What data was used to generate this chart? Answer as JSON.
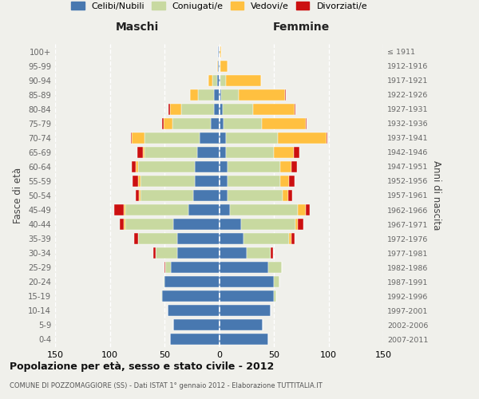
{
  "age_groups": [
    "0-4",
    "5-9",
    "10-14",
    "15-19",
    "20-24",
    "25-29",
    "30-34",
    "35-39",
    "40-44",
    "45-49",
    "50-54",
    "55-59",
    "60-64",
    "65-69",
    "70-74",
    "75-79",
    "80-84",
    "85-89",
    "90-94",
    "95-99",
    "100+"
  ],
  "birth_years": [
    "2007-2011",
    "2002-2006",
    "1997-2001",
    "1992-1996",
    "1987-1991",
    "1982-1986",
    "1977-1981",
    "1972-1976",
    "1967-1971",
    "1962-1966",
    "1957-1961",
    "1952-1956",
    "1947-1951",
    "1942-1946",
    "1937-1941",
    "1932-1936",
    "1927-1931",
    "1922-1926",
    "1917-1921",
    "1912-1916",
    "≤ 1911"
  ],
  "maschi": {
    "celibi": [
      45,
      42,
      47,
      52,
      50,
      44,
      38,
      38,
      42,
      28,
      24,
      22,
      22,
      20,
      18,
      8,
      5,
      5,
      2,
      1,
      1
    ],
    "coniugati": [
      0,
      0,
      0,
      1,
      1,
      5,
      20,
      36,
      44,
      58,
      48,
      50,
      52,
      48,
      50,
      35,
      30,
      14,
      4,
      0,
      0
    ],
    "vedovi": [
      0,
      0,
      0,
      0,
      0,
      0,
      0,
      0,
      1,
      1,
      1,
      2,
      2,
      2,
      12,
      8,
      10,
      8,
      4,
      1,
      0
    ],
    "divorziati": [
      0,
      0,
      0,
      0,
      0,
      1,
      2,
      4,
      4,
      9,
      3,
      5,
      4,
      5,
      1,
      1,
      1,
      0,
      0,
      0,
      0
    ]
  },
  "femmine": {
    "nubili": [
      45,
      40,
      47,
      50,
      50,
      45,
      25,
      22,
      20,
      10,
      8,
      8,
      8,
      6,
      6,
      4,
      3,
      2,
      1,
      0,
      0
    ],
    "coniugate": [
      0,
      0,
      0,
      2,
      5,
      12,
      22,
      42,
      50,
      62,
      50,
      48,
      48,
      44,
      48,
      35,
      28,
      16,
      5,
      1,
      0
    ],
    "vedove": [
      0,
      0,
      0,
      0,
      0,
      0,
      0,
      2,
      2,
      7,
      5,
      8,
      10,
      18,
      44,
      40,
      38,
      42,
      32,
      7,
      2
    ],
    "divorziate": [
      0,
      0,
      0,
      0,
      0,
      0,
      2,
      3,
      5,
      4,
      4,
      5,
      5,
      5,
      1,
      1,
      1,
      1,
      0,
      0,
      0
    ]
  },
  "colors": {
    "celibi": "#4878b0",
    "coniugati": "#c8d9a0",
    "vedovi": "#ffc040",
    "divorziati": "#cc1010"
  },
  "xlim": 150,
  "title": "Popolazione per età, sesso e stato civile - 2012",
  "subtitle": "COMUNE DI POZZOMAGGIORE (SS) - Dati ISTAT 1° gennaio 2012 - Elaborazione TUTTITALIA.IT",
  "ylabel": "Fasce di età",
  "ylabel_right": "Anni di nascita",
  "header_left": "Maschi",
  "header_right": "Femmine",
  "legend_labels": [
    "Celibi/Nubili",
    "Coniugati/e",
    "Vedovi/e",
    "Divorziati/e"
  ],
  "bg_color": "#f0f0eb"
}
